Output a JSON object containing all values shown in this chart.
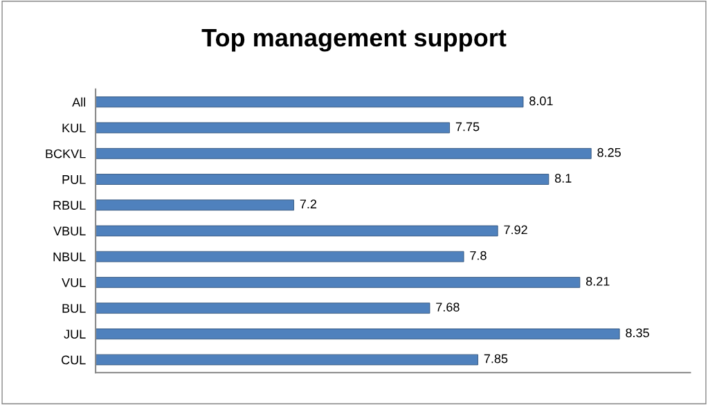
{
  "chart_data": {
    "type": "bar",
    "orientation": "horizontal",
    "title": "Top management support",
    "categories": [
      "All",
      "KUL",
      "BCKVL",
      "PUL",
      "RBUL",
      "VBUL",
      "NBUL",
      "VUL",
      "BUL",
      "JUL",
      "CUL"
    ],
    "values": [
      8.01,
      7.75,
      8.25,
      8.1,
      7.2,
      7.92,
      7.8,
      8.21,
      7.68,
      8.35,
      7.85
    ],
    "color": "#4f81bd",
    "xlim": [
      6.5,
      8.6
    ],
    "tick_labels": "y",
    "data_labels": true,
    "grid": false,
    "legend": false
  }
}
